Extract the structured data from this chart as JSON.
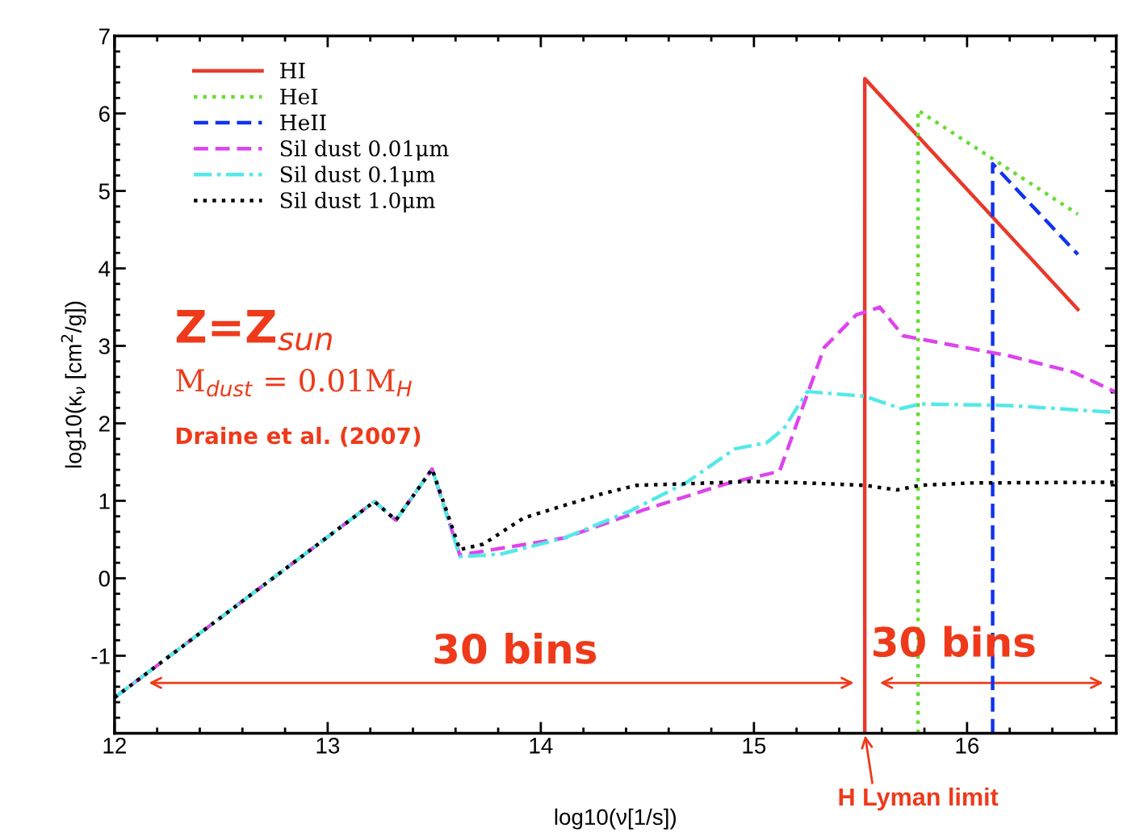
{
  "chart_data": {
    "type": "line",
    "xlabel": "log10(ν[1/s])",
    "ylabel": "log10(κ$_{ν}$ [cm$^{2}$/g])",
    "xlim": [
      12,
      16.7
    ],
    "xticks": [
      12,
      13,
      14,
      15,
      16
    ],
    "ylim": [
      -2,
      7
    ],
    "yticks": [
      -1,
      0,
      1,
      2,
      3,
      4,
      5,
      6,
      7
    ],
    "legend": "top left",
    "grid": false,
    "series": [
      {
        "name": "HI",
        "color": "#e8392b",
        "line_style": "solid",
        "x": [
          15.52,
          15.52,
          16.52
        ],
        "values": [
          -2,
          6.45,
          3.47
        ]
      },
      {
        "name": "HeI",
        "color": "#66dd33",
        "line_style": "dotted",
        "x": [
          15.77,
          15.77,
          16.52
        ],
        "values": [
          -2,
          6.04,
          4.7
        ]
      },
      {
        "name": "HeII",
        "color": "#1133ee",
        "line_style": "dashed",
        "x": [
          16.12,
          16.12,
          16.52
        ],
        "values": [
          -2,
          5.35,
          4.18
        ]
      },
      {
        "name": "Sil dust 0.01μm",
        "color": "#dd44ee",
        "line_style": "dashed",
        "x": [
          12.0,
          13.22,
          13.32,
          13.49,
          13.62,
          14.11,
          14.49,
          14.87,
          15.12,
          15.33,
          15.48,
          15.59,
          15.7,
          16.2,
          16.5,
          16.7
        ],
        "values": [
          -1.54,
          0.99,
          0.75,
          1.41,
          0.3,
          0.52,
          0.89,
          1.22,
          1.38,
          2.98,
          3.4,
          3.5,
          3.13,
          2.87,
          2.66,
          2.4
        ]
      },
      {
        "name": "Sil dust 0.1μm",
        "color": "#55e8e8",
        "line_style": "dashdot",
        "x": [
          12.0,
          13.22,
          13.32,
          13.49,
          13.62,
          13.81,
          14.11,
          14.42,
          14.68,
          14.91,
          15.06,
          15.14,
          15.25,
          15.52,
          15.69,
          15.78,
          16.2,
          16.7
        ],
        "values": [
          -1.54,
          0.99,
          0.75,
          1.41,
          0.28,
          0.31,
          0.52,
          0.87,
          1.23,
          1.67,
          1.75,
          1.93,
          2.41,
          2.35,
          2.19,
          2.25,
          2.23,
          2.14
        ]
      },
      {
        "name": "Sil dust 1.0μm",
        "color": "#000000",
        "line_style": "dotted",
        "x": [
          12.0,
          13.22,
          13.32,
          13.49,
          13.62,
          13.73,
          13.92,
          14.11,
          14.3,
          14.45,
          14.68,
          14.98,
          15.25,
          15.52,
          15.67,
          15.78,
          16.01,
          16.7
        ],
        "values": [
          -1.54,
          0.99,
          0.75,
          1.41,
          0.37,
          0.44,
          0.78,
          0.94,
          1.1,
          1.2,
          1.22,
          1.25,
          1.23,
          1.2,
          1.14,
          1.2,
          1.23,
          1.24
        ]
      }
    ],
    "annotations": [
      "Z=Z$_{sun}$",
      "M$_{dust}$ = 0.01M$_{H}$",
      "Draine et al. (2007)",
      "30 bins",
      "30 bins",
      {
        "text": "H Lyman limit",
        "x": 15.52,
        "y": -2
      }
    ]
  }
}
